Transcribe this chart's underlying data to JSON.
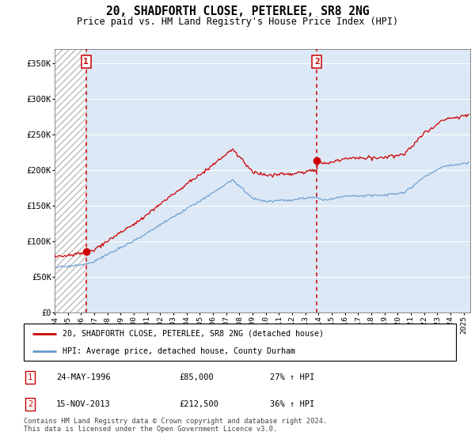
{
  "title": "20, SHADFORTH CLOSE, PETERLEE, SR8 2NG",
  "subtitle": "Price paid vs. HM Land Registry's House Price Index (HPI)",
  "ylim": [
    0,
    370000
  ],
  "xlim_start": 1994.0,
  "xlim_end": 2025.5,
  "sale1_date": 1996.39,
  "sale1_price": 85000,
  "sale1_label": "1",
  "sale2_date": 2013.88,
  "sale2_price": 212500,
  "sale2_label": "2",
  "legend_line1": "20, SHADFORTH CLOSE, PETERLEE, SR8 2NG (detached house)",
  "legend_line2": "HPI: Average price, detached house, County Durham",
  "table_row1": [
    "1",
    "24-MAY-1996",
    "£85,000",
    "27% ↑ HPI"
  ],
  "table_row2": [
    "2",
    "15-NOV-2013",
    "£212,500",
    "36% ↑ HPI"
  ],
  "footer": "Contains HM Land Registry data © Crown copyright and database right 2024.\nThis data is licensed under the Open Government Licence v3.0.",
  "red_color": "#cc0000",
  "blue_color": "#6699cc",
  "background_color": "#dce8f5"
}
